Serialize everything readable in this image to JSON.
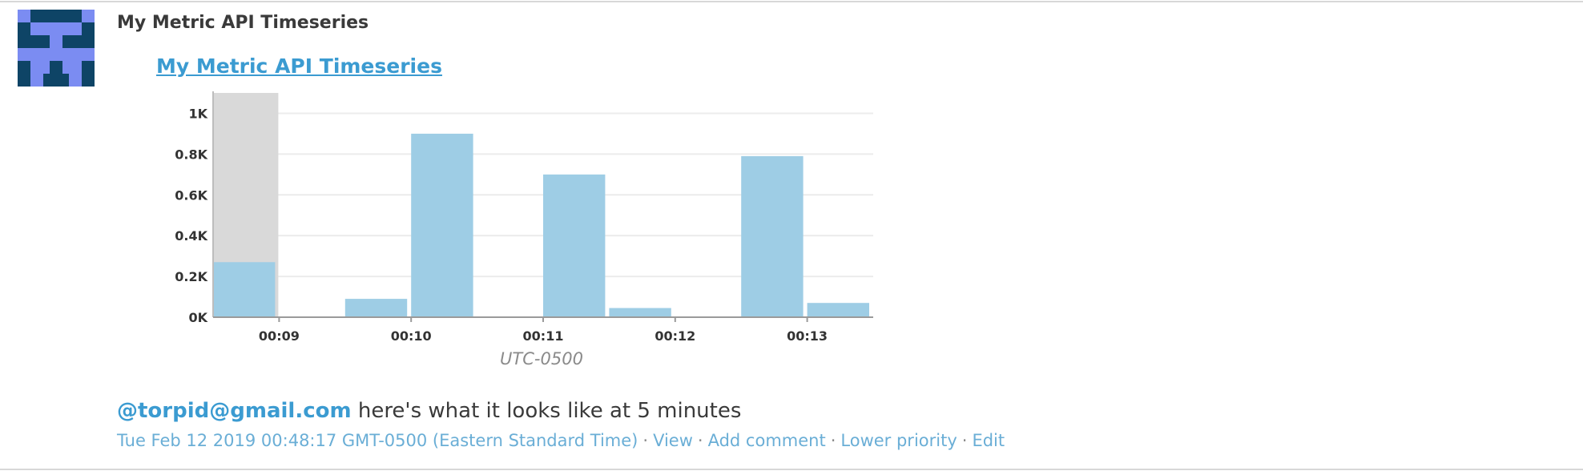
{
  "event": {
    "author": "My Metric API Timeseries",
    "graph_title": "My Metric API Timeseries",
    "message": {
      "mention": "@torpid@gmail.com",
      "text": " here's what it looks like at 5 minutes"
    },
    "timestamp": "Tue Feb 12 2019 00:48:17 GMT-0500 (Eastern Standard Time)",
    "actions": {
      "view": "View",
      "add_comment": "Add comment",
      "lower_priority": "Lower priority",
      "edit": "Edit"
    },
    "separator": "·"
  },
  "colors": {
    "bar": "#9ecde5",
    "highlight": "#d9d9d9",
    "link": "#3b9bd1",
    "avatar_dark": "#0e4466",
    "avatar_light": "#7b8cf2"
  },
  "chart_data": {
    "type": "bar",
    "ylim": [
      0,
      1100
    ],
    "y_ticks": [
      {
        "value": 0,
        "label": "0K"
      },
      {
        "value": 200,
        "label": "0.2K"
      },
      {
        "value": 400,
        "label": "0.4K"
      },
      {
        "value": 600,
        "label": "0.6K"
      },
      {
        "value": 800,
        "label": "0.8K"
      },
      {
        "value": 1000,
        "label": "1K"
      }
    ],
    "x_ticks": [
      "00:09",
      "00:10",
      "00:11",
      "00:12",
      "00:13"
    ],
    "xlabel": "UTC-0500",
    "grid": true,
    "highlighted_interval": [
      0,
      1
    ],
    "values": [
      270,
      0,
      90,
      900,
      0,
      700,
      45,
      0,
      790,
      70
    ]
  }
}
